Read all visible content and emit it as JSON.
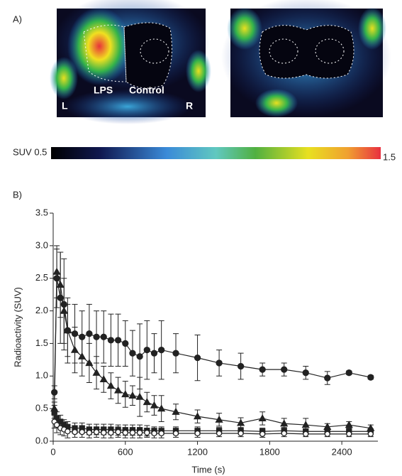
{
  "panel_a": {
    "label": "A)",
    "image_labels": [
      "LPS",
      "Control",
      "L",
      "R"
    ],
    "colorbar": {
      "min_label": "SUV 0.5",
      "max_label": "1.5"
    }
  },
  "chart_data": {
    "type": "line",
    "label": "B)",
    "x_label": "Time (s)",
    "y_label": "Radioactivity (SUV)",
    "xlim": [
      0,
      2700
    ],
    "xticks": [
      0,
      600,
      1200,
      1800,
      2400
    ],
    "ylim": [
      0,
      3.5
    ],
    "yticks": [
      {
        "value": 0,
        "label": "0.0"
      },
      0.5,
      {
        "value": 1,
        "label": "1.0"
      },
      1.5,
      {
        "value": 2,
        "label": "2.0"
      },
      2.5,
      {
        "value": 3,
        "label": "3.0"
      },
      3.5
    ],
    "color": "#222",
    "series": [
      {
        "marker": "circle",
        "x": [
          10,
          30,
          60,
          90,
          120,
          180,
          240,
          300,
          360,
          420,
          480,
          540,
          600,
          660,
          720,
          780,
          840,
          900,
          1020,
          1200,
          1380,
          1560,
          1740,
          1920,
          2100,
          2280,
          2460,
          2640
        ],
        "values": [
          0.75,
          2.5,
          2.2,
          2.1,
          1.7,
          1.65,
          1.6,
          1.65,
          1.6,
          1.6,
          1.55,
          1.55,
          1.5,
          1.35,
          1.3,
          1.4,
          1.35,
          1.4,
          1.35,
          1.28,
          1.2,
          1.15,
          1.1,
          1.1,
          1.05,
          0.97,
          1.05,
          0.98
        ],
        "errors": [
          0.1,
          0.45,
          0.7,
          0.7,
          0.5,
          0.45,
          0.4,
          0.45,
          0.4,
          0.4,
          0.4,
          0.4,
          0.35,
          0.35,
          0.5,
          0.45,
          0.3,
          0.45,
          0.3,
          0.35,
          0.2,
          0.2,
          0.1,
          0.1,
          0.1,
          0.1,
          0.03,
          0.03
        ]
      },
      {
        "marker": "triangle",
        "x": [
          10,
          30,
          60,
          90,
          120,
          180,
          240,
          300,
          360,
          420,
          480,
          540,
          600,
          660,
          720,
          780,
          840,
          900,
          1020,
          1200,
          1380,
          1560,
          1740,
          1920,
          2100,
          2280,
          2460,
          2640
        ],
        "values": [
          0.5,
          2.6,
          2.4,
          2.0,
          1.7,
          1.4,
          1.3,
          1.2,
          1.05,
          0.95,
          0.85,
          0.78,
          0.72,
          0.7,
          0.68,
          0.6,
          0.55,
          0.5,
          0.45,
          0.38,
          0.33,
          0.28,
          0.35,
          0.27,
          0.25,
          0.22,
          0.25,
          0.2
        ],
        "errors": [
          0.1,
          0.4,
          0.5,
          0.5,
          0.4,
          0.35,
          0.3,
          0.3,
          0.25,
          0.2,
          0.2,
          0.2,
          0.2,
          0.15,
          0.3,
          0.15,
          0.15,
          0.2,
          0.12,
          0.1,
          0.1,
          0.08,
          0.1,
          0.08,
          0.1,
          0.05,
          0.05,
          0.05
        ]
      },
      {
        "marker": "square",
        "x": [
          10,
          30,
          60,
          90,
          120,
          180,
          240,
          300,
          360,
          420,
          480,
          540,
          600,
          660,
          720,
          780,
          840,
          900,
          1020,
          1200,
          1380,
          1560,
          1740,
          1920,
          2100,
          2280,
          2460,
          2640
        ],
        "values": [
          0.45,
          0.35,
          0.3,
          0.25,
          0.22,
          0.2,
          0.2,
          0.18,
          0.18,
          0.18,
          0.18,
          0.17,
          0.17,
          0.17,
          0.17,
          0.16,
          0.16,
          0.16,
          0.16,
          0.16,
          0.16,
          0.16,
          0.15,
          0.16,
          0.15,
          0.15,
          0.15,
          0.15
        ],
        "errors": [
          0.1,
          0.1,
          0.1,
          0.08,
          0.08,
          0.08,
          0.08,
          0.08,
          0.08,
          0.08,
          0.08,
          0.08,
          0.08,
          0.08,
          0.08,
          0.08,
          0.06,
          0.06,
          0.06,
          0.06,
          0.05,
          0.05,
          0.05,
          0.05,
          0.04,
          0.04,
          0.04,
          0.04
        ]
      },
      {
        "marker": "circle-open",
        "x": [
          10,
          30,
          60,
          90,
          120,
          180,
          240,
          300,
          360,
          420,
          480,
          540,
          600,
          660,
          720,
          780,
          840,
          900,
          1020,
          1200,
          1380,
          1560,
          1740,
          1920,
          2100,
          2280,
          2460,
          2640
        ],
        "values": [
          0.3,
          0.25,
          0.2,
          0.18,
          0.15,
          0.14,
          0.14,
          0.13,
          0.14,
          0.13,
          0.13,
          0.14,
          0.13,
          0.13,
          0.13,
          0.13,
          0.12,
          0.12,
          0.12,
          0.12,
          0.12,
          0.12,
          0.11,
          0.12,
          0.11,
          0.11,
          0.11,
          0.11
        ],
        "errors": [
          0.1,
          0.12,
          0.1,
          0.1,
          0.1,
          0.08,
          0.08,
          0.08,
          0.08,
          0.08,
          0.08,
          0.08,
          0.08,
          0.08,
          0.08,
          0.07,
          0.07,
          0.07,
          0.06,
          0.06,
          0.05,
          0.05,
          0.05,
          0.05,
          0.04,
          0.04,
          0.04,
          0.04
        ]
      }
    ]
  }
}
